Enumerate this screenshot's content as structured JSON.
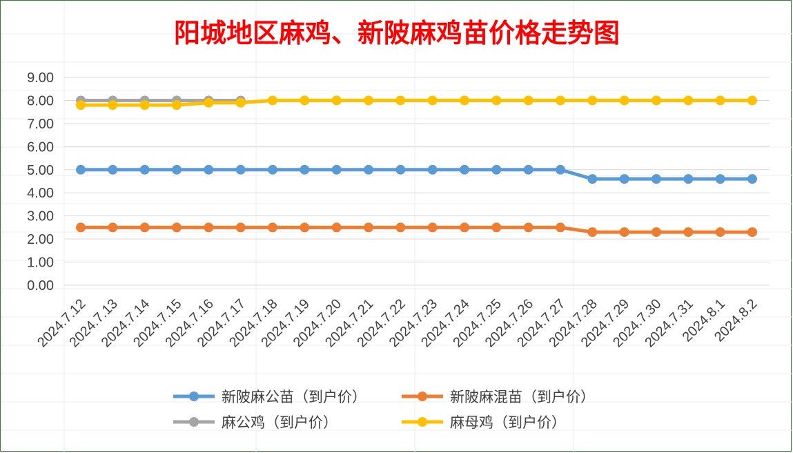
{
  "chart_data": {
    "type": "line",
    "title": "阳城地区麻鸡、新陂麻鸡苗价格走势图",
    "xlabel": "",
    "ylabel": "",
    "ylim": [
      0,
      9
    ],
    "yticks": [
      "0.00",
      "1.00",
      "2.00",
      "3.00",
      "4.00",
      "5.00",
      "6.00",
      "7.00",
      "8.00",
      "9.00"
    ],
    "grid": true,
    "legend_position": "bottom",
    "categories": [
      "2024.7.12",
      "2024.7.13",
      "2024.7.14",
      "2024.7.15",
      "2024.7.16",
      "2024.7.17",
      "2024.7.18",
      "2024.7.19",
      "2024.7.20",
      "2024.7.21",
      "2024.7.22",
      "2024.7.23",
      "2024.7.24",
      "2024.7.25",
      "2024.7.26",
      "2024.7.27",
      "2024.7.28",
      "2024.7.29",
      "2024.7.30",
      "2024.7.31",
      "2024.8.1",
      "2024.8.2"
    ],
    "series": [
      {
        "name": "新陂麻公苗（到户价）",
        "color": "#5b9bd5",
        "values": [
          5.0,
          5.0,
          5.0,
          5.0,
          5.0,
          5.0,
          5.0,
          5.0,
          5.0,
          5.0,
          5.0,
          5.0,
          5.0,
          5.0,
          5.0,
          5.0,
          4.6,
          4.6,
          4.6,
          4.6,
          4.6,
          4.6
        ]
      },
      {
        "name": "新陂麻混苗（到户价）",
        "color": "#ed7d31",
        "values": [
          2.5,
          2.5,
          2.5,
          2.5,
          2.5,
          2.5,
          2.5,
          2.5,
          2.5,
          2.5,
          2.5,
          2.5,
          2.5,
          2.5,
          2.5,
          2.5,
          2.3,
          2.3,
          2.3,
          2.3,
          2.3,
          2.3
        ]
      },
      {
        "name": "麻公鸡（到户价）",
        "color": "#a5a5a5",
        "values": [
          8.0,
          8.0,
          8.0,
          8.0,
          8.0,
          8.0,
          null,
          null,
          null,
          null,
          null,
          null,
          null,
          null,
          null,
          null,
          null,
          null,
          null,
          null,
          null,
          null
        ]
      },
      {
        "name": "麻母鸡（到户价）",
        "color": "#ffc000",
        "values": [
          7.8,
          7.8,
          7.8,
          7.8,
          7.9,
          7.9,
          8.0,
          8.0,
          8.0,
          8.0,
          8.0,
          8.0,
          8.0,
          8.0,
          8.0,
          8.0,
          8.0,
          8.0,
          8.0,
          8.0,
          8.0,
          8.0
        ]
      }
    ]
  }
}
